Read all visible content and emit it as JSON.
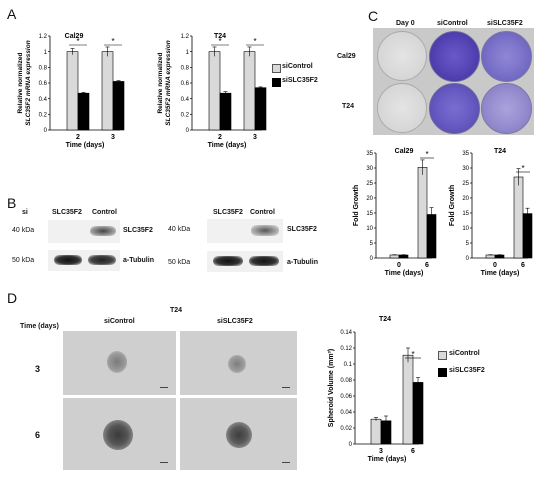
{
  "panels": {
    "A": "A",
    "B": "B",
    "C": "C",
    "D": "D"
  },
  "legend": {
    "sicontrol": "siControl",
    "sislc": "siSLC35F2"
  },
  "colors": {
    "control": "#d9d9d9",
    "knockdown": "#000000"
  },
  "chart_data": [
    {
      "type": "bar",
      "title": "Cal29",
      "categories": [
        "2",
        "3"
      ],
      "series": [
        {
          "name": "siControl",
          "values": [
            1.0,
            1.0
          ],
          "errors": [
            0.04,
            0.06
          ]
        },
        {
          "name": "siSLC35F2",
          "values": [
            0.47,
            0.62
          ],
          "errors": [
            0.01,
            0.01
          ]
        }
      ],
      "xlabel": "Time (days)",
      "ylabel": [
        "Relative normalized",
        "SLC35F2 mRNA expression"
      ],
      "ylim": [
        0,
        1.2
      ],
      "yticks": [
        "0",
        "0.2",
        "0.4",
        "0.6",
        "0.8",
        "1",
        "1.2"
      ],
      "annotations": [
        "*",
        "*"
      ]
    },
    {
      "type": "bar",
      "title": "T24",
      "categories": [
        "2",
        "3"
      ],
      "series": [
        {
          "name": "siControl",
          "values": [
            1.0,
            1.0
          ],
          "errors": [
            0.06,
            0.06
          ]
        },
        {
          "name": "siSLC35F2",
          "values": [
            0.47,
            0.54
          ],
          "errors": [
            0.02,
            0.01
          ]
        }
      ],
      "xlabel": "Time (days)",
      "ylabel": [
        "Relative normalized",
        "SLC35F2 mRNA expression"
      ],
      "ylim": [
        0,
        1.2
      ],
      "yticks": [
        "0",
        "0.2",
        "0.4",
        "0.6",
        "0.8",
        "1",
        "1.2"
      ],
      "annotations": [
        "*",
        "*"
      ]
    },
    {
      "type": "bar",
      "title": "Cal29",
      "categories": [
        "0",
        "6"
      ],
      "series": [
        {
          "name": "siControl",
          "values": [
            1.0,
            30.2
          ],
          "errors": [
            0.1,
            2.5
          ]
        },
        {
          "name": "siSLC35F2",
          "values": [
            1.0,
            14.5
          ],
          "errors": [
            0.1,
            2.3
          ]
        }
      ],
      "xlabel": "Time (days)",
      "ylabel": "Fold Growth",
      "ylim": [
        0,
        35
      ],
      "yticks": [
        "0",
        "5",
        "10",
        "15",
        "20",
        "25",
        "30",
        "35"
      ],
      "annotations": [
        "*"
      ]
    },
    {
      "type": "bar",
      "title": "T24",
      "categories": [
        "0",
        "6"
      ],
      "series": [
        {
          "name": "siControl",
          "values": [
            1.0,
            27.0
          ],
          "errors": [
            0.1,
            2.8
          ]
        },
        {
          "name": "siSLC35F2",
          "values": [
            1.0,
            14.8
          ],
          "errors": [
            0.1,
            1.8
          ]
        }
      ],
      "xlabel": "Time (days)",
      "ylabel": "Fold Growth",
      "ylim": [
        0,
        35
      ],
      "yticks": [
        "0",
        "5",
        "10",
        "15",
        "20",
        "25",
        "30",
        "35"
      ],
      "annotations": [
        "*"
      ]
    },
    {
      "type": "bar",
      "title": "T24",
      "categories": [
        "3",
        "6"
      ],
      "series": [
        {
          "name": "siControl",
          "values": [
            0.031,
            0.111
          ],
          "errors": [
            0.002,
            0.009
          ]
        },
        {
          "name": "siSLC35F2",
          "values": [
            0.029,
            0.077
          ],
          "errors": [
            0.006,
            0.006
          ]
        }
      ],
      "xlabel": "Time (days)",
      "ylabel": "Spheroid Volume (mm³)",
      "ylim": [
        0,
        0.14
      ],
      "yticks": [
        "0",
        "0.02",
        "0.04",
        "0.06",
        "0.08",
        "0.1",
        "0.12",
        "0.14"
      ],
      "annotations": [
        "*"
      ]
    }
  ],
  "blots": {
    "left": {
      "si_label": "si",
      "lanes": [
        "SLC35F2",
        "Control"
      ],
      "rows": [
        {
          "kda": "40 kDa",
          "protein": "SLC35F2"
        },
        {
          "kda": "50 kDa",
          "protein": "a-Tubulin"
        }
      ]
    },
    "right": {
      "lanes": [
        "SLC35F2",
        "Control"
      ],
      "rows": [
        {
          "kda": "40 kDa",
          "protein": "SLC35F2"
        },
        {
          "kda": "50 kDa",
          "protein": "a-Tubulin"
        }
      ]
    }
  },
  "colony": {
    "cols": [
      "Day 0",
      "siControl",
      "siSLC35F2"
    ],
    "rows": [
      "Cal29",
      "T24"
    ]
  },
  "spheroid": {
    "title": "T24",
    "time_label": "Time (days)",
    "cols": [
      "siControl",
      "siSLC35F2"
    ],
    "rows": [
      "3",
      "6"
    ]
  }
}
